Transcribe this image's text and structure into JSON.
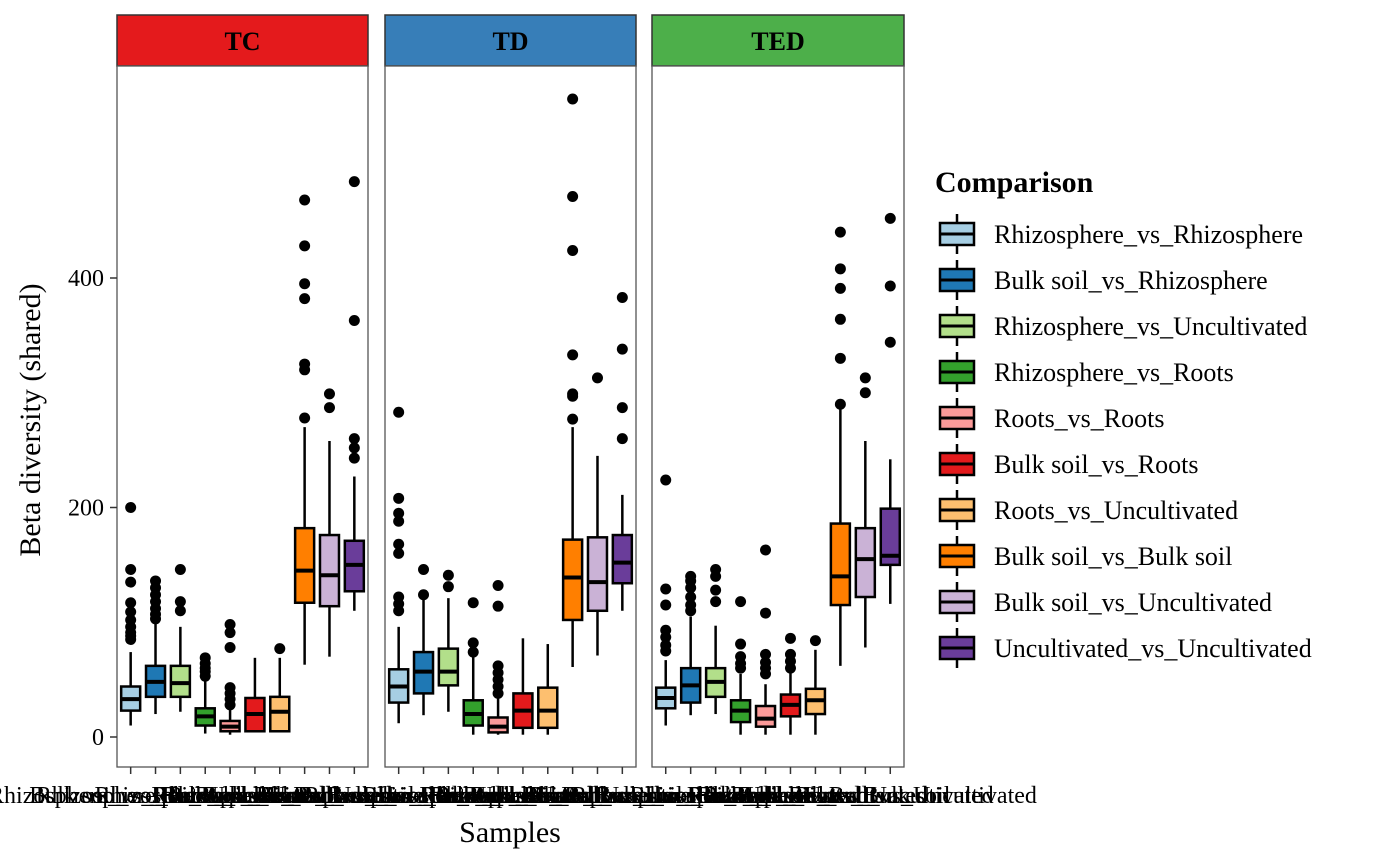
{
  "chart_data": {
    "type": "boxplot",
    "title": "",
    "xlabel": "Samples",
    "ylabel": "Beta diversity (shared)",
    "ylim": [
      -40,
      570
    ],
    "yticks": [
      0,
      200,
      400
    ],
    "grid": false,
    "legend": {
      "title": "Comparison",
      "placement": "right"
    },
    "categories": [
      "Rhizosphere_vs_Rhizosphere",
      "Bulk soil_vs_Rhizosphere",
      "Rhizosphere_vs_Uncultivated",
      "Rhizosphere_vs_Roots",
      "Roots_vs_Roots",
      "Bulk soil_vs_Roots",
      "Roots_vs_Uncultivated",
      "Bulk soil_vs_Bulk soil",
      "Bulk soil_vs_Uncultivated",
      "Uncultivated_vs_Uncultivated"
    ],
    "colors": [
      "#A6CEE3",
      "#1F78B4",
      "#B2DF8A",
      "#33A02C",
      "#FB9A99",
      "#E31A1C",
      "#FDBF6F",
      "#FF7F00",
      "#CAB2D6",
      "#6A3D9A"
    ],
    "facets": [
      {
        "name": "TC",
        "strip_color": "#E41A1C",
        "boxes": [
          {
            "min": 10,
            "q1": 23,
            "median": 33,
            "q3": 44,
            "max": 74,
            "outliers": [
              85,
              88,
              91,
              96,
              102,
              109,
              117,
              135,
              146,
              200
            ]
          },
          {
            "min": 20,
            "q1": 35,
            "median": 48,
            "q3": 62,
            "max": 100,
            "outliers": [
              103,
              107,
              112,
              118,
              124,
              130,
              136
            ]
          },
          {
            "min": 22,
            "q1": 35,
            "median": 47,
            "q3": 62,
            "max": 96,
            "outliers": [
              110,
              118,
              146
            ]
          },
          {
            "min": 3,
            "q1": 10,
            "median": 18,
            "q3": 25,
            "max": 50,
            "outliers": [
              53,
              57,
              60,
              64,
              69
            ]
          },
          {
            "min": 2,
            "q1": 5,
            "median": 9,
            "q3": 14,
            "max": 24,
            "outliers": [
              28,
              33,
              38,
              43,
              78,
              91,
              98
            ]
          },
          {
            "min": 4,
            "q1": 5,
            "median": 20,
            "q3": 34,
            "max": 69,
            "outliers": []
          },
          {
            "min": 4,
            "q1": 5,
            "median": 22,
            "q3": 35,
            "max": 69,
            "outliers": [
              77
            ]
          },
          {
            "min": 63,
            "q1": 117,
            "median": 145,
            "q3": 182,
            "max": 270,
            "outliers": [
              278,
              320,
              325,
              382,
              395,
              428,
              468
            ]
          },
          {
            "min": 70,
            "q1": 114,
            "median": 141,
            "q3": 176,
            "max": 258,
            "outliers": [
              287,
              299
            ]
          },
          {
            "min": 110,
            "q1": 127,
            "median": 150,
            "q3": 171,
            "max": 227,
            "outliers": [
              243,
              252,
              260,
              363,
              484
            ]
          }
        ]
      },
      {
        "name": "TD",
        "strip_color": "#377EB8",
        "boxes": [
          {
            "min": 12,
            "q1": 30,
            "median": 44,
            "q3": 59,
            "max": 96,
            "outliers": [
              110,
              116,
              122,
              160,
              168,
              188,
              195,
              208,
              283
            ]
          },
          {
            "min": 19,
            "q1": 38,
            "median": 57,
            "q3": 74,
            "max": 124,
            "outliers": [
              124,
              146
            ]
          },
          {
            "min": 22,
            "q1": 45,
            "median": 57,
            "q3": 77,
            "max": 121,
            "outliers": [
              131,
              141
            ]
          },
          {
            "min": 2,
            "q1": 10,
            "median": 20,
            "q3": 32,
            "max": 70,
            "outliers": [
              74,
              82,
              117
            ]
          },
          {
            "min": 2,
            "q1": 4,
            "median": 9,
            "q3": 17,
            "max": 34,
            "outliers": [
              38,
              44,
              50,
              56,
              62,
              114,
              132
            ]
          },
          {
            "min": 2,
            "q1": 8,
            "median": 23,
            "q3": 38,
            "max": 86,
            "outliers": []
          },
          {
            "min": 2,
            "q1": 8,
            "median": 23,
            "q3": 43,
            "max": 81,
            "outliers": []
          },
          {
            "min": 61,
            "q1": 102,
            "median": 139,
            "q3": 172,
            "max": 270,
            "outliers": [
              277,
              297,
              299,
              333,
              424,
              471,
              556
            ]
          },
          {
            "min": 71,
            "q1": 110,
            "median": 135,
            "q3": 174,
            "max": 245,
            "outliers": [
              313
            ]
          },
          {
            "min": 110,
            "q1": 134,
            "median": 152,
            "q3": 176,
            "max": 211,
            "outliers": [
              260,
              287,
              338,
              383
            ]
          }
        ]
      },
      {
        "name": "TED",
        "strip_color": "#4DAF4A",
        "boxes": [
          {
            "min": 10,
            "q1": 25,
            "median": 34,
            "q3": 43,
            "max": 67,
            "outliers": [
              75,
              80,
              87,
              93,
              115,
              129,
              224
            ]
          },
          {
            "min": 19,
            "q1": 30,
            "median": 45,
            "q3": 60,
            "max": 105,
            "outliers": [
              110,
              115,
              122,
              130,
              136,
              140
            ]
          },
          {
            "min": 20,
            "q1": 35,
            "median": 48,
            "q3": 60,
            "max": 97,
            "outliers": [
              118,
              128,
              140,
              146
            ]
          },
          {
            "min": 2,
            "q1": 13,
            "median": 23,
            "q3": 32,
            "max": 55,
            "outliers": [
              60,
              64,
              70,
              81,
              118
            ]
          },
          {
            "min": 2,
            "q1": 9,
            "median": 16,
            "q3": 27,
            "max": 46,
            "outliers": [
              55,
              60,
              65,
              72,
              108,
              163
            ]
          },
          {
            "min": 2,
            "q1": 18,
            "median": 28,
            "q3": 37,
            "max": 56,
            "outliers": [
              60,
              66,
              72,
              86
            ]
          },
          {
            "min": 2,
            "q1": 20,
            "median": 32,
            "q3": 42,
            "max": 76,
            "outliers": [
              84
            ]
          },
          {
            "min": 62,
            "q1": 115,
            "median": 140,
            "q3": 186,
            "max": 290,
            "outliers": [
              290,
              330,
              364,
              391,
              408,
              440
            ]
          },
          {
            "min": 78,
            "q1": 122,
            "median": 155,
            "q3": 182,
            "max": 258,
            "outliers": [
              300,
              313
            ]
          },
          {
            "min": 116,
            "q1": 150,
            "median": 158,
            "q3": 199,
            "max": 242,
            "outliers": [
              344,
              393,
              452
            ]
          }
        ]
      }
    ]
  }
}
